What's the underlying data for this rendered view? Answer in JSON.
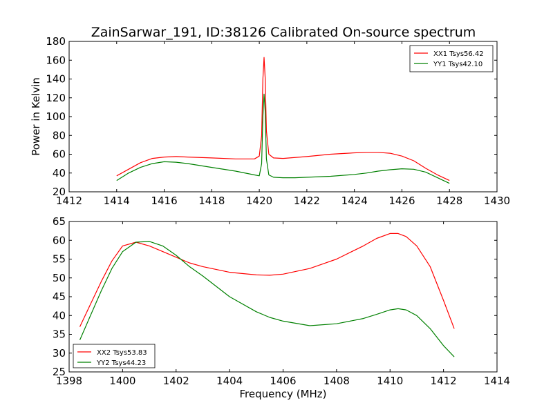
{
  "figure_title": "ZainSarwar_191, ID:38126 Calibrated On-source spectrum",
  "colors": {
    "red": "#ff0000",
    "green": "#008000",
    "axes": "#000000",
    "background": "#ffffff"
  },
  "chart_data": [
    {
      "type": "line",
      "title": "ZainSarwar_191, ID:38126 Calibrated On-source spectrum",
      "xlabel": "",
      "ylabel": "Power in Kelvin",
      "xlim": [
        1412,
        1430
      ],
      "ylim": [
        20,
        180
      ],
      "xticks": [
        "1412",
        "1414",
        "1416",
        "1418",
        "1420",
        "1422",
        "1424",
        "1426",
        "1428",
        "1430"
      ],
      "yticks": [
        "20",
        "40",
        "60",
        "80",
        "100",
        "120",
        "140",
        "160",
        "180"
      ],
      "grid": false,
      "legend_position": "top-right",
      "series": [
        {
          "name": "XX1 Tsys56.42",
          "color": "#ff0000",
          "x": [
            1414,
            1414.5,
            1415,
            1415.5,
            1416,
            1416.5,
            1417,
            1418,
            1419,
            1419.8,
            1420.0,
            1420.1,
            1420.15,
            1420.2,
            1420.25,
            1420.3,
            1420.4,
            1420.6,
            1421,
            1422,
            1423,
            1424,
            1424.5,
            1425,
            1425.5,
            1426,
            1426.5,
            1427,
            1427.5,
            1428
          ],
          "y": [
            37,
            44,
            51,
            55.5,
            57,
            57.5,
            57,
            56,
            55,
            55,
            58,
            80,
            140,
            163,
            140,
            85,
            60,
            56,
            55.5,
            57.5,
            60,
            61.5,
            62,
            62,
            61,
            58,
            53,
            45,
            38,
            32
          ]
        },
        {
          "name": "YY1 Tsys42.10",
          "color": "#008000",
          "x": [
            1414,
            1414.5,
            1415,
            1415.5,
            1416,
            1416.5,
            1417,
            1418,
            1419,
            1419.8,
            1420.0,
            1420.1,
            1420.15,
            1420.2,
            1420.25,
            1420.3,
            1420.4,
            1420.6,
            1421,
            1421.5,
            1422,
            1423,
            1424,
            1424.5,
            1425,
            1425.5,
            1426,
            1426.5,
            1427,
            1427.5,
            1428
          ],
          "y": [
            32,
            40,
            46,
            50,
            52,
            51.5,
            50,
            46,
            42,
            38,
            37,
            50,
            100,
            124,
            105,
            55,
            38,
            35.5,
            35,
            35,
            35.5,
            36.5,
            38.5,
            40,
            42,
            43.5,
            44.5,
            44,
            41,
            35,
            29
          ]
        }
      ]
    },
    {
      "type": "line",
      "title": "",
      "xlabel": "Frequency (MHz)",
      "ylabel": "",
      "xlim": [
        1398,
        1414
      ],
      "ylim": [
        25,
        65
      ],
      "xticks": [
        "1398",
        "1400",
        "1402",
        "1404",
        "1406",
        "1408",
        "1410",
        "1412",
        "1414"
      ],
      "yticks": [
        "25",
        "30",
        "35",
        "40",
        "45",
        "50",
        "55",
        "60",
        "65"
      ],
      "grid": false,
      "legend_position": "bottom-left",
      "series": [
        {
          "name": "XX2 Tsys53.83",
          "color": "#ff0000",
          "x": [
            1398.4,
            1398.8,
            1399.2,
            1399.6,
            1400,
            1400.5,
            1401,
            1401.5,
            1402,
            1402.5,
            1403,
            1404,
            1405,
            1405.5,
            1406,
            1407,
            1408,
            1409,
            1409.5,
            1410,
            1410.3,
            1410.6,
            1411,
            1411.5,
            1412,
            1412.4
          ],
          "y": [
            37,
            43,
            49,
            54.5,
            58.5,
            59.5,
            58.5,
            57,
            55.5,
            54,
            53,
            51.5,
            50.8,
            50.7,
            51,
            52.5,
            55,
            58.5,
            60.5,
            61.8,
            61.8,
            61,
            58.5,
            53,
            44,
            36.5
          ]
        },
        {
          "name": "YY2 Tsys44.23",
          "color": "#008000",
          "x": [
            1398.4,
            1398.8,
            1399.2,
            1399.6,
            1400,
            1400.5,
            1401,
            1401.5,
            1402,
            1402.5,
            1403,
            1404,
            1405,
            1405.5,
            1406,
            1407,
            1408,
            1409,
            1409.5,
            1410,
            1410.3,
            1410.6,
            1411,
            1411.5,
            1412,
            1412.4
          ],
          "y": [
            33.5,
            40,
            46.5,
            52.5,
            57,
            59.5,
            59.7,
            58.5,
            56,
            53,
            50.5,
            45,
            41,
            39.5,
            38.5,
            37.3,
            37.8,
            39.2,
            40.3,
            41.5,
            41.8,
            41.5,
            40,
            36.5,
            32,
            29
          ]
        }
      ]
    }
  ]
}
